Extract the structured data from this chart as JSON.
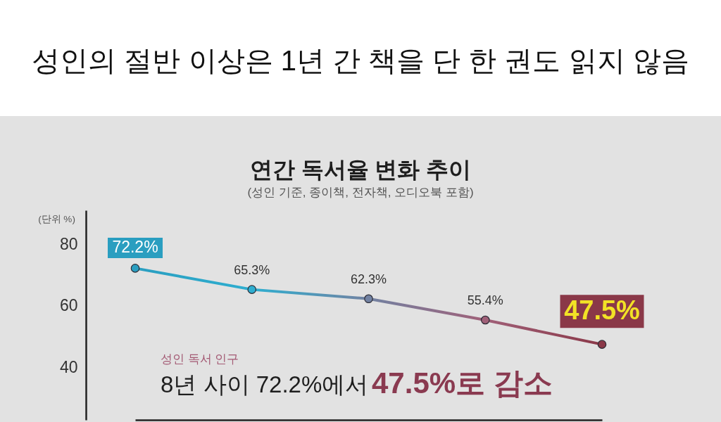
{
  "chart_data": {
    "type": "line",
    "title": "성인의 절반 이상은 1년 간 책을 단 한 권도 읽지 않음",
    "subtitle": "연간 독서율 변화 추이",
    "ylabel": "(단위 %)",
    "annotations": [
      "(성인 기준, 종이책, 전자책, 오디오북 포함)",
      "성인 독서 인구",
      "8년 사이 72.2%에서",
      "47.5%로 감소"
    ],
    "categories": [
      null,
      null,
      null,
      null,
      null
    ],
    "series": [
      {
        "colors": [
          "#2a9ec0",
          "#2eaed0",
          "#7282a2",
          "#a06078",
          "#8a3848"
        ],
        "values": [
          72.2,
          65.3,
          62.3,
          55.4,
          47.5
        ],
        "value_labels": [
          "72.2%",
          "65.3%",
          "62.3%",
          "55.4%",
          "47.5%"
        ]
      }
    ],
    "ylim": [
      23,
      91
    ],
    "yticks": [
      40,
      60,
      80
    ],
    "tick_labels": "y",
    "marker": "circle",
    "line_style": "solid"
  }
}
